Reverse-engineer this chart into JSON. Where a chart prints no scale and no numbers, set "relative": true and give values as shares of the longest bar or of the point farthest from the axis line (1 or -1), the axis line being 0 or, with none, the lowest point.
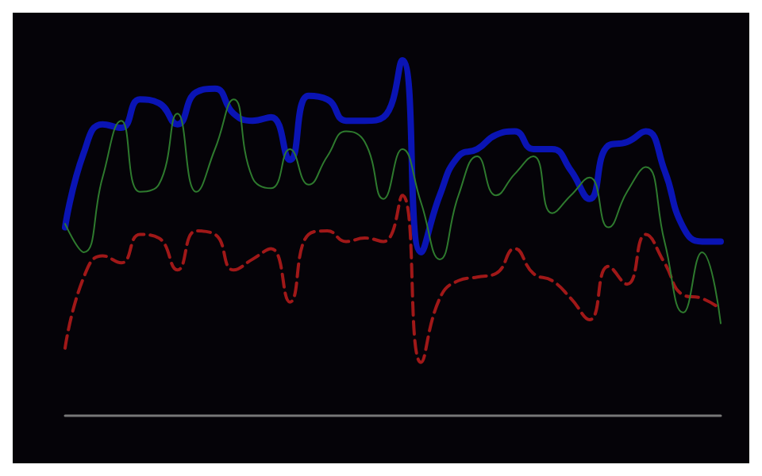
{
  "chart_data": {
    "type": "line",
    "relative": true,
    "categories": [
      null,
      null,
      null,
      null,
      null,
      null,
      null,
      null,
      null,
      null,
      null,
      null,
      null,
      null,
      null,
      null,
      null,
      null,
      null,
      null,
      null,
      null,
      null,
      null,
      null,
      null,
      null,
      null,
      null,
      null,
      null,
      null,
      null,
      null,
      null,
      null
    ],
    "series": [
      {
        "color": "#0a14b4",
        "line_style": "solid",
        "values": [
          0.53,
          0.74,
          0.82,
          0.81,
          0.89,
          0.88,
          0.82,
          0.91,
          0.92,
          0.85,
          0.83,
          0.84,
          0.72,
          0.9,
          0.89,
          0.83,
          0.83,
          0.84,
          1,
          0.46,
          0.62,
          0.73,
          0.75,
          0.79,
          0.8,
          0.75,
          0.75,
          0.69,
          0.61,
          0.76,
          0.77,
          0.8,
          0.69,
          0.53,
          0.49,
          0.49
        ]
      },
      {
        "color": "#a01818",
        "line_style": "dashed",
        "values": [
          0.19,
          0.39,
          0.45,
          0.43,
          0.51,
          0.5,
          0.41,
          0.52,
          0.51,
          0.41,
          0.44,
          0.47,
          0.32,
          0.51,
          0.52,
          0.49,
          0.5,
          0.49,
          0.62,
          0.15,
          0.33,
          0.38,
          0.39,
          0.4,
          0.47,
          0.4,
          0.38,
          0.33,
          0.27,
          0.42,
          0.37,
          0.51,
          0.43,
          0.34,
          0.33,
          0.3
        ]
      },
      {
        "color": "#2e7a2e",
        "line_style": "solid",
        "values": [
          0.54,
          0.46,
          0.67,
          0.83,
          0.63,
          0.65,
          0.85,
          0.63,
          0.75,
          0.89,
          0.67,
          0.64,
          0.75,
          0.65,
          0.73,
          0.8,
          0.77,
          0.61,
          0.75,
          0.6,
          0.44,
          0.62,
          0.73,
          0.62,
          0.68,
          0.73,
          0.57,
          0.62,
          0.67,
          0.53,
          0.63,
          0.7,
          0.49,
          0.29,
          0.46,
          0.26
        ]
      }
    ],
    "marker": "none"
  }
}
